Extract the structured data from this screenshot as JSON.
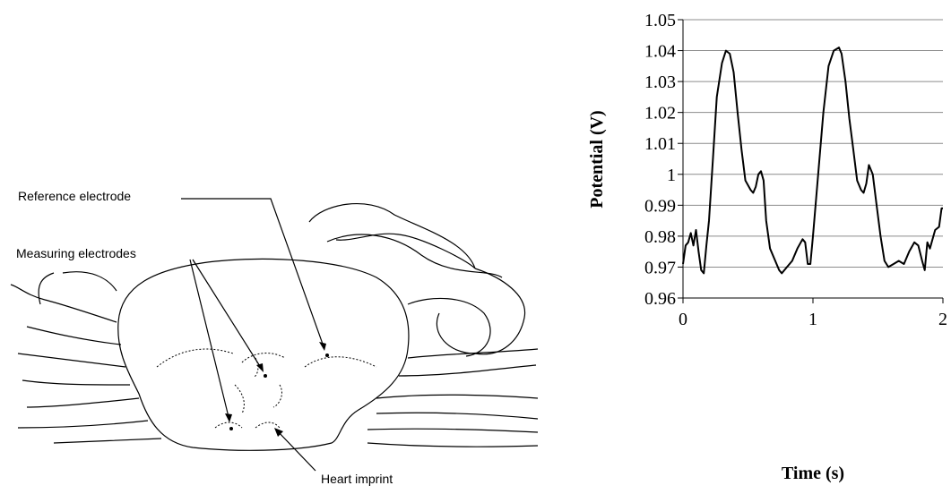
{
  "diagram": {
    "labels": [
      "Reference electrode",
      "Measuring electrodes",
      "Heart imprint"
    ]
  },
  "chart_data": {
    "type": "line",
    "x_label": "Time (s)",
    "y_label": "Potential (V)",
    "x": [
      0,
      0.02,
      0.04,
      0.06,
      0.08,
      0.1,
      0.12,
      0.14,
      0.16,
      0.18,
      0.2,
      0.23,
      0.26,
      0.3,
      0.33,
      0.36,
      0.39,
      0.42,
      0.45,
      0.48,
      0.52,
      0.54,
      0.56,
      0.58,
      0.6,
      0.62,
      0.64,
      0.67,
      0.7,
      0.74,
      0.76,
      0.8,
      0.84,
      0.88,
      0.92,
      0.94,
      0.96,
      0.98,
      1,
      1.04,
      1.08,
      1.12,
      1.16,
      1.2,
      1.22,
      1.25,
      1.28,
      1.31,
      1.34,
      1.37,
      1.39,
      1.41,
      1.43,
      1.46,
      1.49,
      1.52,
      1.55,
      1.58,
      1.62,
      1.66,
      1.7,
      1.74,
      1.78,
      1.81,
      1.84,
      1.86,
      1.88,
      1.9,
      1.94,
      1.97,
      1.99,
      2
    ],
    "values": [
      0.971,
      0.977,
      0.978,
      0.981,
      0.977,
      0.982,
      0.975,
      0.969,
      0.968,
      0.977,
      0.985,
      1.005,
      1.025,
      1.036,
      1.04,
      1.039,
      1.033,
      1.02,
      1.008,
      0.998,
      0.995,
      0.994,
      0.996,
      1.0,
      1.001,
      0.998,
      0.985,
      0.976,
      0.973,
      0.969,
      0.968,
      0.97,
      0.972,
      0.976,
      0.979,
      0.978,
      0.971,
      0.971,
      0.98,
      1.0,
      1.02,
      1.035,
      1.04,
      1.041,
      1.039,
      1.03,
      1.018,
      1.008,
      0.998,
      0.995,
      0.994,
      0.997,
      1.003,
      1.0,
      0.99,
      0.98,
      0.972,
      0.97,
      0.971,
      0.972,
      0.971,
      0.975,
      0.978,
      0.977,
      0.972,
      0.969,
      0.978,
      0.976,
      0.982,
      0.983,
      0.989,
      0.989
    ],
    "color": "#000000",
    "xlim": [
      0,
      2
    ],
    "xticks": [
      0,
      1,
      2
    ],
    "ylim": [
      0.96,
      1.05
    ],
    "yticks": [
      0.96,
      0.97,
      0.98,
      0.99,
      1,
      1.01,
      1.02,
      1.03,
      1.04,
      1.05
    ],
    "grid": true
  }
}
